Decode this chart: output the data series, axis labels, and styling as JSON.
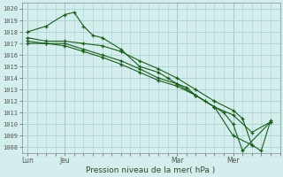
{
  "bg_color": "#d4eeee",
  "plot_bg": "#d4eeee",
  "grid_color": "#aacece",
  "line_color": "#1a5c1a",
  "marker": "+",
  "xlabel": "Pression niveau de la mer( hPa )",
  "ylim": [
    1007.5,
    1020.5
  ],
  "yticks": [
    1008,
    1009,
    1010,
    1011,
    1012,
    1013,
    1014,
    1015,
    1016,
    1017,
    1018,
    1019,
    1020
  ],
  "xtick_labels": [
    "Lun",
    "Jeu",
    "Mar",
    "Mer"
  ],
  "xtick_pos": [
    0,
    2,
    8,
    11
  ],
  "xlim": [
    -0.3,
    13.5
  ],
  "series": [
    {
      "x": [
        0,
        1,
        2,
        2.5,
        3,
        3.5,
        4,
        5,
        6,
        7,
        7.5,
        8,
        8.5,
        9,
        9.5,
        10,
        10.5,
        11,
        11.5,
        13
      ],
      "y": [
        1018,
        1018.5,
        1019.5,
        1019.7,
        1018.5,
        1017.7,
        1017.5,
        1016.5,
        1015,
        1014.5,
        1014,
        1013.5,
        1013.2,
        1012.5,
        1012,
        1011.5,
        1011,
        1010,
        1007.7,
        1010.2
      ]
    },
    {
      "x": [
        0,
        1,
        2,
        3,
        4,
        5,
        6,
        7,
        8,
        9,
        10,
        11,
        12,
        13
      ],
      "y": [
        1017.2,
        1017,
        1017,
        1016.5,
        1016,
        1015.5,
        1014.8,
        1014,
        1013.5,
        1012.5,
        1011.5,
        1010.8,
        1009.3,
        1010.2
      ]
    },
    {
      "x": [
        0,
        1,
        2,
        3,
        4,
        5,
        6,
        7,
        8,
        9,
        10,
        11,
        12
      ],
      "y": [
        1017,
        1017,
        1016.8,
        1016.3,
        1015.8,
        1015.2,
        1014.5,
        1013.8,
        1013.3,
        1012.5,
        1011.5,
        1009,
        1008.2
      ]
    },
    {
      "x": [
        0,
        1,
        2,
        3,
        4,
        5,
        6,
        7,
        8,
        9,
        10,
        11,
        11.5,
        12,
        12.5,
        13
      ],
      "y": [
        1017.5,
        1017.2,
        1017.2,
        1017,
        1016.8,
        1016.3,
        1015.5,
        1014.8,
        1014,
        1013,
        1012,
        1011.2,
        1010.5,
        1008.2,
        1007.7,
        1010.3
      ]
    }
  ]
}
